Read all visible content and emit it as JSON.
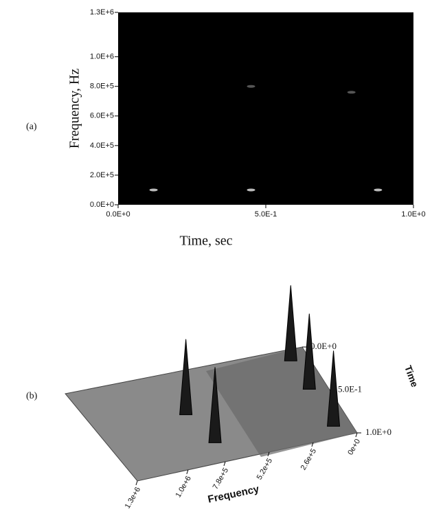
{
  "chart_data": [
    {
      "type": "spectrogram",
      "panel": "(a)",
      "xlabel": "Time, sec",
      "ylabel": "Frequency, Hz",
      "x": [
        0.12,
        0.45,
        0.88,
        0.45,
        0.79
      ],
      "values": [
        100000,
        100000,
        100000,
        800000,
        760000
      ],
      "xlim": [
        0,
        1
      ],
      "ylim": [
        0,
        1300000
      ],
      "xticks": [
        {
          "value": 0,
          "label": "0.0E+0"
        },
        {
          "value": 0.5,
          "label": "5.0E-1"
        },
        {
          "value": 1,
          "label": "1.0E+0"
        }
      ],
      "yticks": [
        {
          "value": 0,
          "label": "0.0E+0"
        },
        {
          "value": 200000,
          "label": "2.0E+5"
        },
        {
          "value": 400000,
          "label": "4.0E+5"
        },
        {
          "value": 600000,
          "label": "6.0E+5"
        },
        {
          "value": 800000,
          "label": "8.0E+5"
        },
        {
          "value": 1000000,
          "label": "1.0E+6"
        },
        {
          "value": 1300000,
          "label": "1.3E+6"
        }
      ]
    },
    {
      "type": "surface3d",
      "panel": "(b)",
      "xlabel": "Frequency",
      "ylabel": "Time",
      "xlim": [
        1300000,
        0
      ],
      "ylim": [
        0,
        1
      ],
      "xticks": [
        {
          "value": 1300000,
          "label": "1.3e+6"
        },
        {
          "value": 1000000,
          "label": "1.0e+6"
        },
        {
          "value": 780000,
          "label": "7.8e+5"
        },
        {
          "value": 520000,
          "label": "5.2e+5"
        },
        {
          "value": 260000,
          "label": "2.6e+5"
        },
        {
          "value": 0,
          "label": "0e+0"
        }
      ],
      "yticks": [
        {
          "value": 0,
          "label": "0.0E+0"
        },
        {
          "value": 0.5,
          "label": "5.0E-1"
        },
        {
          "value": 1,
          "label": "1.0E+0"
        }
      ]
    }
  ]
}
